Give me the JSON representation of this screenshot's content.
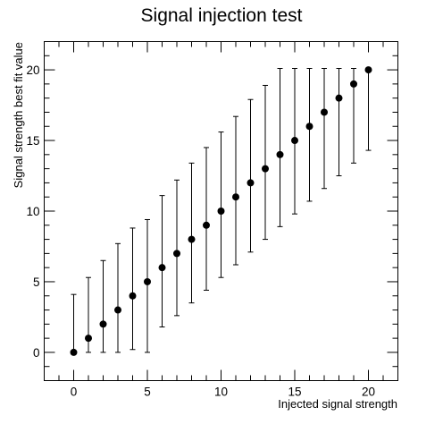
{
  "chart_data": {
    "type": "scatter",
    "title": "Signal injection test",
    "xlabel": "Injected signal strength",
    "ylabel": "Signal strength best fit value",
    "xlim": [
      -2,
      22
    ],
    "ylim": [
      -2,
      22
    ],
    "x_ticks_major": [
      0,
      5,
      10,
      15,
      20
    ],
    "y_ticks_major": [
      0,
      5,
      10,
      15,
      20
    ],
    "x_ticks_minor_step": 1,
    "y_ticks_minor_step": 1,
    "grid": false,
    "marker_color": "#000000",
    "series": [
      {
        "points": [
          {
            "x": 0,
            "y": 0,
            "y_low": 0,
            "y_high": 4.1
          },
          {
            "x": 1,
            "y": 1,
            "y_low": 0,
            "y_high": 5.3
          },
          {
            "x": 2,
            "y": 2,
            "y_low": 0,
            "y_high": 6.5
          },
          {
            "x": 3,
            "y": 3,
            "y_low": 0,
            "y_high": 7.7
          },
          {
            "x": 4,
            "y": 4,
            "y_low": 0.2,
            "y_high": 8.8
          },
          {
            "x": 5,
            "y": 5,
            "y_low": 0,
            "y_high": 9.4
          },
          {
            "x": 6,
            "y": 6,
            "y_low": 1.8,
            "y_high": 11.1
          },
          {
            "x": 7,
            "y": 7,
            "y_low": 2.6,
            "y_high": 12.2
          },
          {
            "x": 8,
            "y": 8,
            "y_low": 3.5,
            "y_high": 13.4
          },
          {
            "x": 9,
            "y": 9,
            "y_low": 4.4,
            "y_high": 14.5
          },
          {
            "x": 10,
            "y": 10,
            "y_low": 5.3,
            "y_high": 15.6
          },
          {
            "x": 11,
            "y": 11,
            "y_low": 6.2,
            "y_high": 16.7
          },
          {
            "x": 12,
            "y": 12,
            "y_low": 7.1,
            "y_high": 17.9
          },
          {
            "x": 13,
            "y": 13,
            "y_low": 8.0,
            "y_high": 18.9
          },
          {
            "x": 14,
            "y": 14,
            "y_low": 8.9,
            "y_high": 20.1
          },
          {
            "x": 15,
            "y": 15,
            "y_low": 9.8,
            "y_high": 20.1
          },
          {
            "x": 16,
            "y": 16,
            "y_low": 10.7,
            "y_high": 20.1
          },
          {
            "x": 17,
            "y": 17,
            "y_low": 11.6,
            "y_high": 20.1
          },
          {
            "x": 18,
            "y": 18,
            "y_low": 12.5,
            "y_high": 20.1
          },
          {
            "x": 19,
            "y": 19,
            "y_low": 13.4,
            "y_high": 20.1
          },
          {
            "x": 20,
            "y": 20,
            "y_low": 14.3,
            "y_high": 20.1
          }
        ]
      }
    ]
  }
}
